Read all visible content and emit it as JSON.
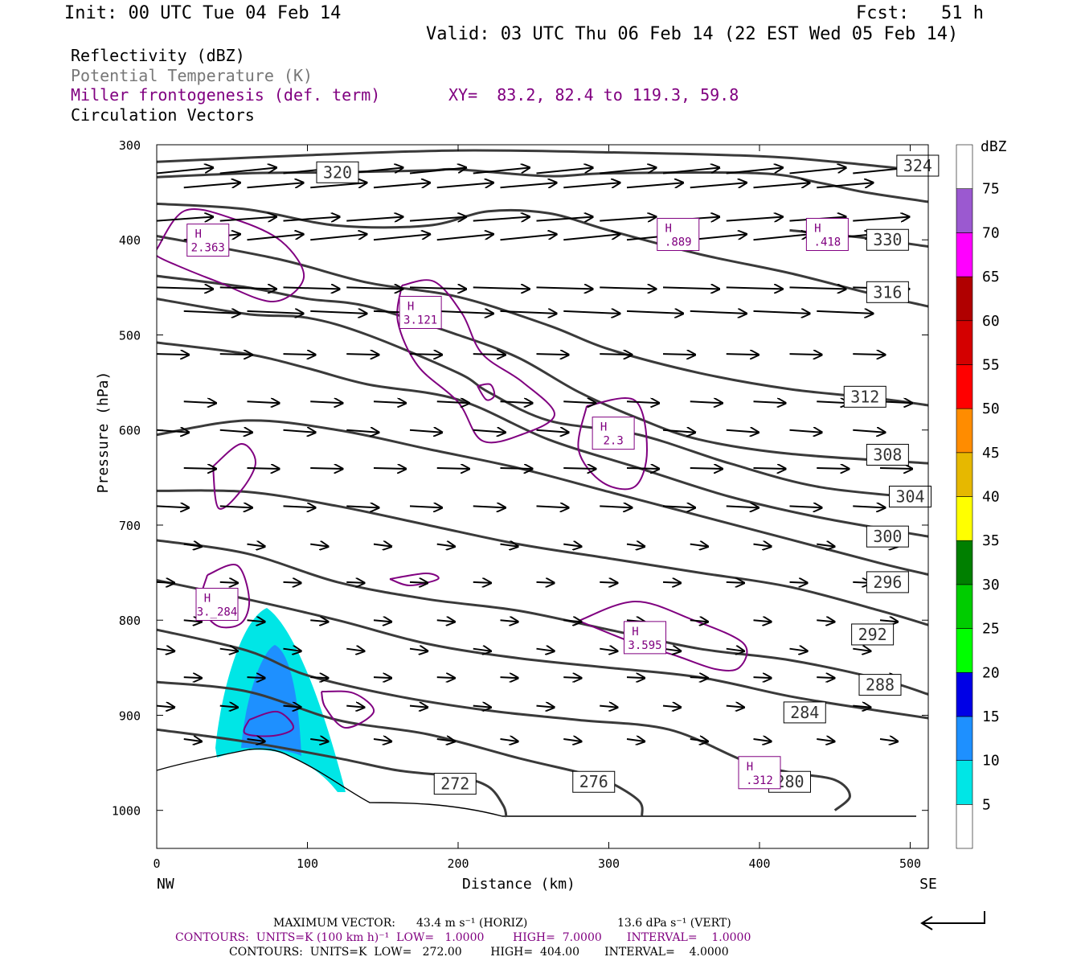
{
  "header": {
    "init": "Init: 00 UTC Tue 04 Feb 14",
    "fcst": "Fcst:   51 h",
    "valid": "Valid: 03 UTC Thu 06 Feb 14 (22 EST Wed 05 Feb 14)"
  },
  "legend": {
    "reflectivity": "Reflectivity (dBZ)",
    "theta": "Potential Temperature (K)",
    "miller": "Miller frontogenesis (def. term)",
    "xy": "XY=  83.2, 82.4 to 119.3, 59.8",
    "vectors": "Circulation Vectors"
  },
  "colors": {
    "theta": "#3a3a3a",
    "frontogenesis": "#800080",
    "vectors": "#000000"
  },
  "footer": {
    "max_vector_label": "MAXIMUM VECTOR:",
    "max_vector_horiz": "43.4 m s⁻¹ (HORIZ)",
    "max_vector_vert": "13.6 dPa s⁻¹ (VERT)",
    "contours_front": "CONTOURS:  UNITS=K (100 km h)⁻¹  LOW=   1.0000        HIGH=  7.0000       INTERVAL=    1.0000",
    "contours_theta": "CONTOURS:  UNITS=K  LOW=   272.00        HIGH=  404.00       INTERVAL=    4.0000"
  },
  "chart_data": {
    "type": "cross-section",
    "xlabel": "Distance (km)",
    "ylabel": "Pressure (hPa)",
    "xlim": [
      0,
      512
    ],
    "ylim": [
      1040,
      300
    ],
    "x_ticks": [
      0,
      100,
      200,
      300,
      400,
      500
    ],
    "y_ticks": [
      300,
      400,
      500,
      600,
      700,
      800,
      900,
      1000
    ],
    "x_end_labels": [
      "NW",
      "SE"
    ],
    "colorbar": {
      "unit": "dBZ",
      "labels": [
        5,
        10,
        15,
        20,
        25,
        30,
        35,
        40,
        45,
        50,
        55,
        60,
        65,
        70,
        75
      ],
      "colors": [
        "#ffffff",
        "#00e6e6",
        "#1e90ff",
        "#0000e6",
        "#00ff00",
        "#00cc00",
        "#007f00",
        "#ffff00",
        "#e6b800",
        "#ff8c00",
        "#ff0000",
        "#d40000",
        "#b00000",
        "#ff00ff",
        "#9b59d0",
        "#ffffff"
      ]
    },
    "theta_contours": [
      {
        "label": "324",
        "points": [
          [
            0,
            318
          ],
          [
            100,
            311
          ],
          [
            200,
            306
          ],
          [
            300,
            308
          ],
          [
            400,
            312
          ],
          [
            450,
            318
          ],
          [
            512,
            328
          ]
        ],
        "label_at": [
          505,
          322
        ]
      },
      {
        "label": "320",
        "points": [
          [
            0,
            334
          ],
          [
            60,
            330
          ],
          [
            120,
            329
          ],
          [
            180,
            327
          ],
          [
            200,
            326
          ],
          [
            260,
            333
          ],
          [
            300,
            330
          ],
          [
            400,
            330
          ],
          [
            440,
            340
          ],
          [
            470,
            350
          ],
          [
            512,
            360
          ]
        ],
        "label_at": [
          120,
          329
        ]
      },
      {
        "label": "330",
        "points": [
          [
            420,
            390
          ],
          [
            470,
            398
          ],
          [
            512,
            407
          ]
        ],
        "label_at": [
          485,
          400
        ]
      },
      {
        "label": "316",
        "points": [
          [
            0,
            362
          ],
          [
            60,
            368
          ],
          [
            120,
            385
          ],
          [
            180,
            385
          ],
          [
            220,
            370
          ],
          [
            260,
            372
          ],
          [
            300,
            390
          ],
          [
            360,
            415
          ],
          [
            420,
            435
          ],
          [
            470,
            455
          ],
          [
            512,
            470
          ]
        ],
        "label_at": [
          485,
          455
        ]
      },
      {
        "label": "312",
        "points": [
          [
            0,
            396
          ],
          [
            80,
            420
          ],
          [
            140,
            445
          ],
          [
            200,
            460
          ],
          [
            260,
            490
          ],
          [
            300,
            515
          ],
          [
            360,
            540
          ],
          [
            420,
            557
          ],
          [
            480,
            567
          ],
          [
            512,
            574
          ]
        ],
        "label_at": [
          470,
          565
        ]
      },
      {
        "label": "308",
        "points": [
          [
            0,
            438
          ],
          [
            60,
            450
          ],
          [
            100,
            462
          ],
          [
            140,
            470
          ],
          [
            200,
            500
          ],
          [
            240,
            524
          ],
          [
            280,
            560
          ],
          [
            320,
            588
          ],
          [
            360,
            610
          ],
          [
            420,
            625
          ],
          [
            512,
            635
          ]
        ],
        "label_at": [
          485,
          626
        ]
      },
      {
        "label": "304",
        "points": [
          [
            0,
            462
          ],
          [
            60,
            478
          ],
          [
            100,
            482
          ],
          [
            140,
            500
          ],
          [
            200,
            540
          ],
          [
            220,
            560
          ],
          [
            260,
            590
          ],
          [
            320,
            605
          ],
          [
            380,
            635
          ],
          [
            440,
            660
          ],
          [
            512,
            672
          ]
        ],
        "label_at": [
          500,
          670
        ]
      },
      {
        "label": "300",
        "points": [
          [
            0,
            508
          ],
          [
            60,
            520
          ],
          [
            100,
            535
          ],
          [
            140,
            552
          ],
          [
            200,
            568
          ],
          [
            260,
            610
          ],
          [
            320,
            640
          ],
          [
            380,
            670
          ],
          [
            440,
            692
          ],
          [
            512,
            712
          ]
        ],
        "label_at": [
          485,
          712
        ]
      },
      {
        "label": "296",
        "points": [
          [
            0,
            605
          ],
          [
            60,
            590
          ],
          [
            120,
            600
          ],
          [
            180,
            620
          ],
          [
            240,
            640
          ],
          [
            300,
            665
          ],
          [
            360,
            690
          ],
          [
            420,
            715
          ],
          [
            480,
            740
          ],
          [
            512,
            752
          ]
        ],
        "label_at": [
          485,
          760
        ]
      },
      {
        "label": "292",
        "points": [
          [
            0,
            664
          ],
          [
            60,
            665
          ],
          [
            120,
            680
          ],
          [
            180,
            700
          ],
          [
            240,
            720
          ],
          [
            300,
            735
          ],
          [
            360,
            750
          ],
          [
            420,
            765
          ],
          [
            480,
            790
          ],
          [
            512,
            805
          ]
        ],
        "label_at": [
          475,
          815
        ]
      },
      {
        "label": "288",
        "points": [
          [
            0,
            716
          ],
          [
            60,
            730
          ],
          [
            120,
            760
          ],
          [
            180,
            778
          ],
          [
            240,
            790
          ],
          [
            300,
            810
          ],
          [
            360,
            830
          ],
          [
            420,
            842
          ],
          [
            480,
            862
          ],
          [
            512,
            878
          ]
        ],
        "label_at": [
          480,
          868
        ]
      },
      {
        "label": "284",
        "points": [
          [
            0,
            758
          ],
          [
            60,
            778
          ],
          [
            120,
            800
          ],
          [
            180,
            825
          ],
          [
            240,
            840
          ],
          [
            300,
            850
          ],
          [
            360,
            860
          ],
          [
            420,
            880
          ],
          [
            470,
            893
          ],
          [
            512,
            903
          ]
        ],
        "label_at": [
          430,
          897
        ]
      },
      {
        "label": "280",
        "points": [
          [
            0,
            810
          ],
          [
            60,
            832
          ],
          [
            100,
            858
          ],
          [
            160,
            880
          ],
          [
            220,
            895
          ],
          [
            280,
            905
          ],
          [
            340,
            915
          ],
          [
            390,
            948
          ],
          [
            420,
            960
          ],
          [
            450,
            968
          ],
          [
            460,
            985
          ],
          [
            450,
            1000
          ]
        ],
        "label_at": [
          420,
          970
        ]
      },
      {
        "label": "276",
        "points": [
          [
            0,
            865
          ],
          [
            60,
            875
          ],
          [
            120,
            905
          ],
          [
            180,
            920
          ],
          [
            240,
            945
          ],
          [
            280,
            960
          ],
          [
            300,
            970
          ],
          [
            320,
            990
          ],
          [
            322,
            1006
          ]
        ],
        "label_at": [
          290,
          970
        ]
      },
      {
        "label": "272",
        "points": [
          [
            0,
            915
          ],
          [
            60,
            928
          ],
          [
            120,
            945
          ],
          [
            160,
            958
          ],
          [
            200,
            965
          ],
          [
            220,
            975
          ],
          [
            230,
            995
          ],
          [
            232,
            1007
          ]
        ],
        "label_at": [
          198,
          972
        ]
      }
    ],
    "frontogenesis_maxima": [
      {
        "label": "H",
        "value": "2.363",
        "x": 34,
        "p": 402
      },
      {
        "label": "H",
        "value": "3.121",
        "x": 175,
        "p": 478
      },
      {
        "label": "H",
        "value": ".889",
        "x": 346,
        "p": 396
      },
      {
        "label": "H",
        "value": ".418",
        "x": 445,
        "p": 396
      },
      {
        "label": "H",
        "value": "2.3",
        "x": 303,
        "p": 605
      },
      {
        "label": "H",
        "value": "3.595",
        "x": 324,
        "p": 820
      },
      {
        "label": "H",
        "value": "3.̲284",
        "x": 40,
        "p": 785
      },
      {
        "label": "H",
        "value": ".312",
        "x": 400,
        "p": 962
      }
    ]
  }
}
